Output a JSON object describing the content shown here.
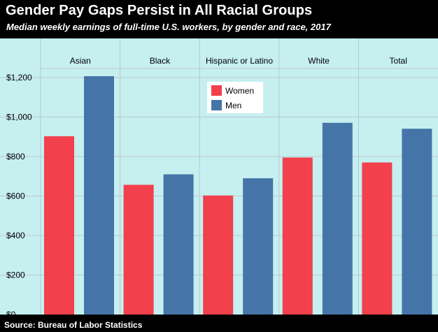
{
  "title": "Gender Pay Gaps Persist in All Racial Groups",
  "subtitle": "Median weekly earnings of full-time U.S. workers, by gender and race, 2017",
  "source": "Source: Bureau of Labor Statistics",
  "colors": {
    "background": "#c6eff0",
    "women": "#f2404c",
    "men": "#4575a8"
  },
  "chart_data": {
    "type": "bar",
    "categories": [
      "Asian",
      "Black",
      "Hispanic or Latino",
      "White",
      "Total"
    ],
    "series": [
      {
        "name": "Women",
        "values": [
          903,
          657,
          603,
          795,
          770
        ]
      },
      {
        "name": "Men",
        "values": [
          1207,
          710,
          690,
          971,
          941
        ]
      }
    ],
    "yticks": [
      "$0",
      "$200",
      "$400",
      "$600",
      "$800",
      "$1,000",
      "$1,200"
    ],
    "tick_values": [
      0,
      200,
      400,
      600,
      800,
      1000,
      1200
    ],
    "ylim": [
      0,
      1300
    ],
    "grid": true,
    "legend_placement": "top-center"
  }
}
